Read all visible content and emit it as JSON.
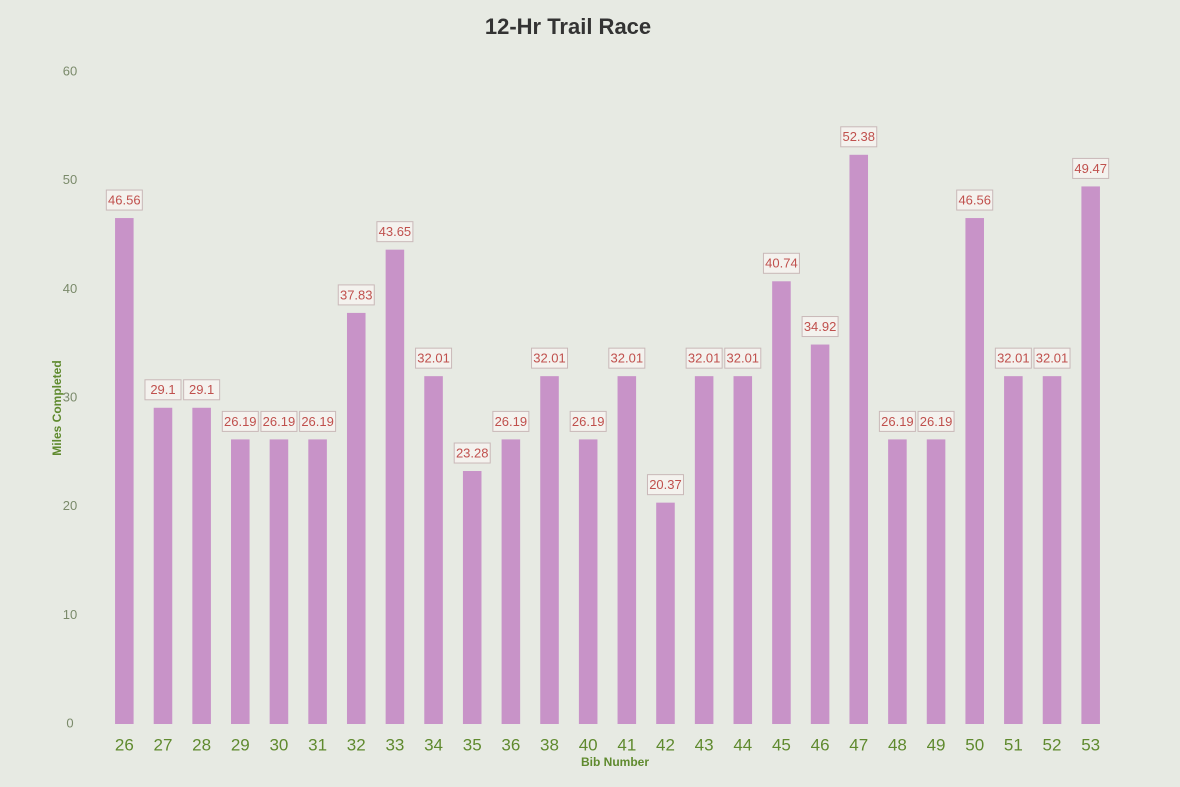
{
  "chart_data": {
    "type": "bar",
    "title": "12-Hr Trail Race",
    "x_label": "Bib Number",
    "y_label": "Miles Completed",
    "categories": [
      "26",
      "27",
      "28",
      "29",
      "30",
      "31",
      "32",
      "33",
      "34",
      "35",
      "36",
      "38",
      "40",
      "41",
      "42",
      "43",
      "44",
      "45",
      "46",
      "47",
      "48",
      "49",
      "50",
      "51",
      "52",
      "53"
    ],
    "values": [
      46.56,
      29.1,
      29.1,
      26.19,
      26.19,
      26.19,
      37.83,
      43.65,
      32.01,
      23.28,
      26.19,
      32.01,
      26.19,
      32.01,
      20.37,
      32.01,
      32.01,
      40.74,
      34.92,
      52.38,
      26.19,
      26.19,
      46.56,
      32.01,
      32.01,
      49.47
    ],
    "color": "#c893c8",
    "ylim": [
      0,
      60
    ],
    "yticks": [
      0,
      10,
      20,
      30,
      40,
      50,
      60
    ],
    "grid": false
  }
}
